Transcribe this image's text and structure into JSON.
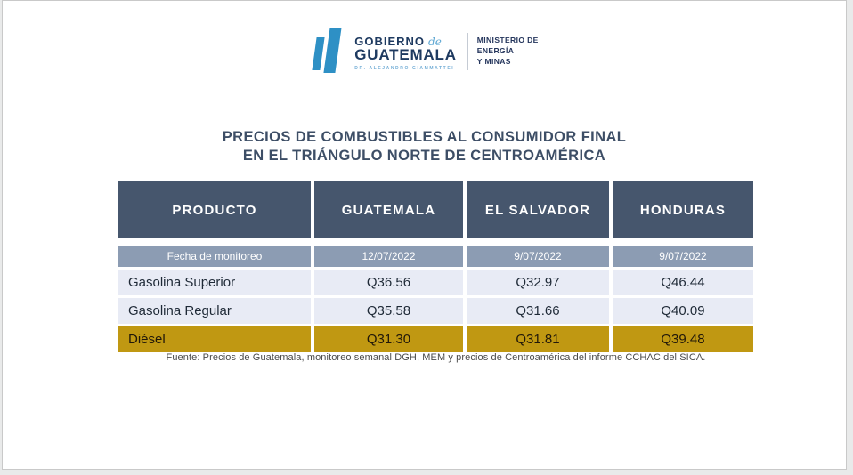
{
  "logo": {
    "gobierno": "GOBIERNO",
    "de": "de",
    "guatemala": "GUATEMALA",
    "subtitle": "DR. ALEJANDRO GIAMMATTEI",
    "ministry_lines": [
      "MINISTERIO DE",
      "ENERGÍA",
      "Y MINAS"
    ]
  },
  "title": {
    "line1": "PRECIOS DE COMBUSTIBLES AL CONSUMIDOR FINAL",
    "line2": "EN EL TRIÁNGULO NORTE DE CENTROAMÉRICA"
  },
  "table": {
    "headers": [
      "PRODUCTO",
      "GUATEMALA",
      "EL SALVADOR",
      "HONDURAS"
    ],
    "date_row": {
      "label": "Fecha de monitoreo",
      "dates": [
        "12/07/2022",
        "9/07/2022",
        "9/07/2022"
      ]
    },
    "rows": [
      {
        "product": "Gasolina Superior",
        "values": [
          "Q36.56",
          "Q32.97",
          "Q46.44"
        ],
        "highlight": false
      },
      {
        "product": "Gasolina Regular",
        "values": [
          "Q35.58",
          "Q31.66",
          "Q40.09"
        ],
        "highlight": false
      },
      {
        "product": "Diésel",
        "values": [
          "Q31.30",
          "Q31.81",
          "Q39.48"
        ],
        "highlight": true
      }
    ]
  },
  "footer": "Fuente: Precios de Guatemala, monitoreo semanal DGH, MEM y precios de Centroamérica del informe CCHAC del SICA.",
  "colors": {
    "header_bg": "#46566d",
    "date_row_bg": "#8c9cb3",
    "row_bg": "#e8ebf5",
    "highlight_bg": "#c09812",
    "title_text": "#3d4e66",
    "logo_blue": "#2e90c5",
    "logo_navy": "#1e3a60",
    "logo_light_blue": "#74aed6"
  }
}
